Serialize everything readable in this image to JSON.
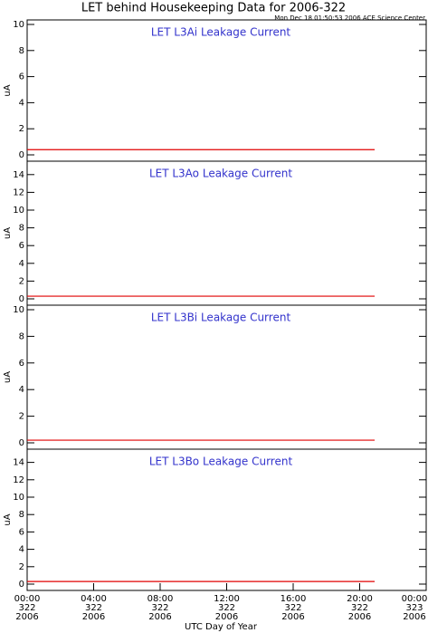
{
  "title": "LET behind Housekeeping Data for 2006-322",
  "subtitle": "Mon Dec 18 01:50:53 2006 ACE Science Center",
  "chart_data": [
    {
      "type": "line",
      "title": "LET L3Ai Leakage Current",
      "ylabel": "uA",
      "x": [
        0,
        20.9
      ],
      "xlim": [
        0,
        24
      ],
      "ylim": [
        0,
        10
      ],
      "yticks": [
        0,
        2,
        4,
        6,
        8,
        10
      ],
      "series": [
        {
          "color": "#e00000",
          "values": [
            0.4,
            0.4
          ]
        }
      ]
    },
    {
      "type": "line",
      "title": "LET L3Ao Leakage Current",
      "ylabel": "uA",
      "x": [
        0,
        20.9
      ],
      "xlim": [
        0,
        24
      ],
      "ylim": [
        0,
        15
      ],
      "yticks": [
        0,
        2,
        4,
        6,
        8,
        10,
        12,
        14
      ],
      "series": [
        {
          "color": "#e00000",
          "values": [
            0.3,
            0.3
          ]
        }
      ]
    },
    {
      "type": "line",
      "title": "LET L3Bi Leakage Current",
      "ylabel": "uA",
      "x": [
        0,
        20.9
      ],
      "xlim": [
        0,
        24
      ],
      "ylim": [
        0,
        10
      ],
      "yticks": [
        0,
        2,
        4,
        6,
        8,
        10
      ],
      "series": [
        {
          "color": "#e00000",
          "values": [
            0.2,
            0.2
          ]
        }
      ]
    },
    {
      "type": "line",
      "title": "LET L3Bo Leakage Current",
      "ylabel": "uA",
      "xlabel": "UTC Day of Year",
      "x": [
        0,
        20.9
      ],
      "xlim": [
        0,
        24
      ],
      "ylim": [
        0,
        15
      ],
      "yticks": [
        0,
        2,
        4,
        6,
        8,
        10,
        12,
        14
      ],
      "xticks": [
        {
          "value": 0,
          "label": [
            "00:00",
            "322",
            "2006"
          ]
        },
        {
          "value": 4,
          "label": [
            "04:00",
            "322",
            "2006"
          ]
        },
        {
          "value": 8,
          "label": [
            "08:00",
            "322",
            "2006"
          ]
        },
        {
          "value": 12,
          "label": [
            "12:00",
            "322",
            "2006"
          ]
        },
        {
          "value": 16,
          "label": [
            "16:00",
            "322",
            "2006"
          ]
        },
        {
          "value": 20,
          "label": [
            "20:00",
            "322",
            "2006"
          ]
        },
        {
          "value": 24,
          "label": [
            "00:00",
            "323",
            "2006"
          ]
        }
      ],
      "series": [
        {
          "color": "#e00000",
          "values": [
            0.3,
            0.3
          ]
        }
      ]
    }
  ]
}
